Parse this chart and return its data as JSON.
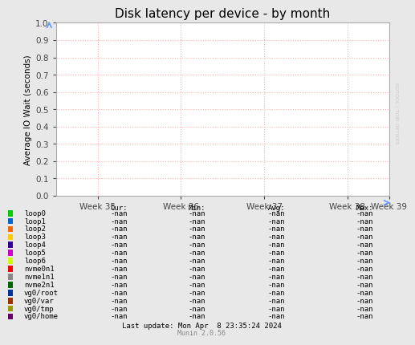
{
  "title": "Disk latency per device - by month",
  "ylabel": "Average IO Wait (seconds)",
  "xlabel_ticks": [
    "Week 35",
    "Week 36",
    "Week 37",
    "Week 38",
    "Week 39"
  ],
  "ylim": [
    0.0,
    1.0
  ],
  "yticks": [
    0.0,
    0.1,
    0.2,
    0.3,
    0.4,
    0.5,
    0.6,
    0.7,
    0.8,
    0.9,
    1.0
  ],
  "grid_color": "#ffb0b0",
  "title_fontsize": 11,
  "legend_items": [
    {
      "label": "loop0",
      "color": "#00cc00"
    },
    {
      "label": "loop1",
      "color": "#0066cc"
    },
    {
      "label": "loop2",
      "color": "#ff6600"
    },
    {
      "label": "loop3",
      "color": "#ffcc00"
    },
    {
      "label": "loop4",
      "color": "#330099"
    },
    {
      "label": "loop5",
      "color": "#cc00cc"
    },
    {
      "label": "loop6",
      "color": "#ccff00"
    },
    {
      "label": "nvme0n1",
      "color": "#ff0000"
    },
    {
      "label": "nvme1n1",
      "color": "#888888"
    },
    {
      "label": "nvme2n1",
      "color": "#006600"
    },
    {
      "label": "vg0/root",
      "color": "#003399"
    },
    {
      "label": "vg0/var",
      "color": "#993300"
    },
    {
      "label": "vg0/tmp",
      "color": "#999900"
    },
    {
      "label": "vg0/home",
      "color": "#660066"
    }
  ],
  "table_headers": [
    "Cur:",
    "Min:",
    "Avg:",
    "Max:"
  ],
  "table_value": "-nan",
  "last_update": "Last update: Mon Apr  8 23:35:24 2024",
  "munin_version": "Munin 2.0.56",
  "watermark": "RDTOOL / TOBI OETIKER",
  "fig_bg": "#e8e8e8",
  "plot_bg": "#ffffff"
}
